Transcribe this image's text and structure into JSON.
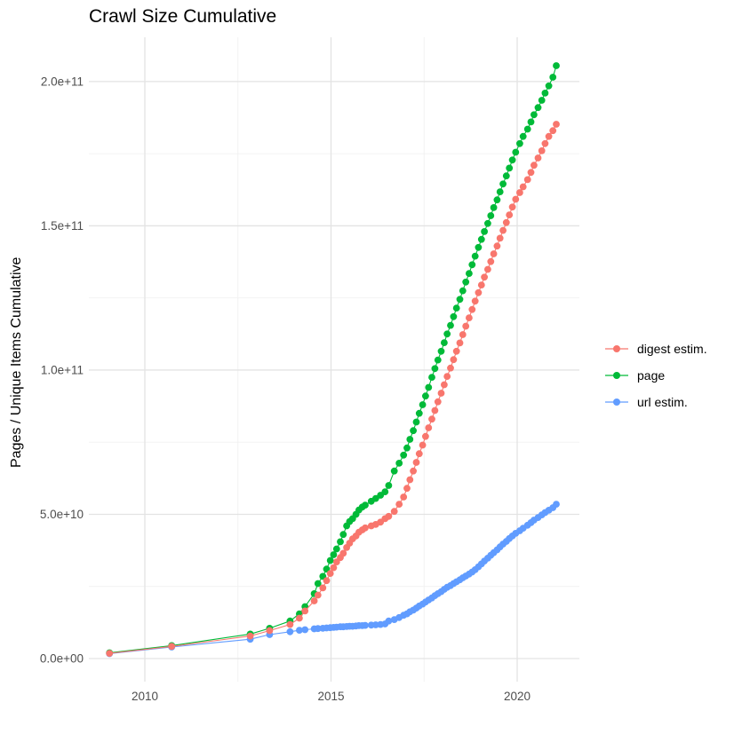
{
  "title": "Crawl Size Cumulative",
  "y_axis": {
    "label": "Pages / Unique Items Cumulative",
    "tick_labels": [
      "0.0e+00",
      "5.0e+10",
      "1.0e+11",
      "1.5e+11",
      "2.0e+11"
    ],
    "tick_values_billions": [
      0,
      50,
      100,
      150,
      200
    ],
    "minor_values_billions": [
      25,
      75,
      125,
      175
    ]
  },
  "x_axis": {
    "tick_labels": [
      "2010",
      "2015",
      "2020"
    ],
    "tick_values": [
      2010,
      2015,
      2020
    ],
    "minor_values": [
      2012.5,
      2017.5
    ]
  },
  "legend": [
    {
      "label": "digest estim.",
      "color": "#F8766D"
    },
    {
      "label": "page",
      "color": "#00BA38"
    },
    {
      "label": "url estim.",
      "color": "#619CFF"
    }
  ],
  "colors": {
    "digest": "#F8766D",
    "page": "#00BA38",
    "url": "#619CFF",
    "grid_major": "#E3E3E3",
    "grid_minor": "#F1F1F1",
    "tick_text": "#4D4D4D",
    "title_text": "#000000"
  },
  "chart_data": {
    "type": "line",
    "title": "Crawl Size Cumulative",
    "xlabel": "",
    "ylabel": "Pages / Unique Items Cumulative",
    "unit": "billions of pages / unique items (1e9)",
    "xlim": [
      2008.5,
      2021.7
    ],
    "ylim_billions": [
      -8,
      215
    ],
    "grid": "major and minor, light gray on white",
    "legend_position": "right",
    "marker": "point",
    "series": [
      {
        "name": "digest estim.",
        "color": "#F8766D",
        "points": [
          [
            2009.05,
            1.8
          ],
          [
            2010.72,
            4.2
          ],
          [
            2012.83,
            7.8
          ],
          [
            2013.35,
            9.7
          ],
          [
            2013.9,
            11.8
          ],
          [
            2014.15,
            14
          ],
          [
            2014.3,
            16.5
          ],
          [
            2014.55,
            20
          ],
          [
            2014.65,
            22
          ],
          [
            2014.78,
            24.5
          ],
          [
            2014.88,
            27
          ],
          [
            2014.98,
            29.5
          ],
          [
            2015.07,
            31.5
          ],
          [
            2015.15,
            33.5
          ],
          [
            2015.25,
            35
          ],
          [
            2015.33,
            36.5
          ],
          [
            2015.42,
            38.5
          ],
          [
            2015.5,
            40
          ],
          [
            2015.58,
            41.5
          ],
          [
            2015.67,
            42.5
          ],
          [
            2015.75,
            43.8
          ],
          [
            2015.84,
            44.6
          ],
          [
            2015.92,
            45.3
          ],
          [
            2016.08,
            46
          ],
          [
            2016.2,
            46.5
          ],
          [
            2016.33,
            47.3
          ],
          [
            2016.45,
            48.5
          ],
          [
            2016.55,
            49.3
          ],
          [
            2016.7,
            51
          ],
          [
            2016.83,
            53.5
          ],
          [
            2016.95,
            56
          ],
          [
            2017.04,
            59
          ],
          [
            2017.12,
            62
          ],
          [
            2017.21,
            65
          ],
          [
            2017.29,
            68
          ],
          [
            2017.37,
            71
          ],
          [
            2017.46,
            74
          ],
          [
            2017.54,
            77
          ],
          [
            2017.62,
            80
          ],
          [
            2017.71,
            83
          ],
          [
            2017.79,
            86
          ],
          [
            2017.87,
            89
          ],
          [
            2017.96,
            92
          ],
          [
            2018.04,
            94.9
          ],
          [
            2018.12,
            97.8
          ],
          [
            2018.21,
            100.7
          ],
          [
            2018.29,
            103.6
          ],
          [
            2018.37,
            106.5
          ],
          [
            2018.46,
            109.4
          ],
          [
            2018.54,
            112.3
          ],
          [
            2018.62,
            115.2
          ],
          [
            2018.71,
            118.1
          ],
          [
            2018.79,
            121
          ],
          [
            2018.87,
            123.9
          ],
          [
            2018.96,
            126.8
          ],
          [
            2019.04,
            129.5
          ],
          [
            2019.12,
            132.2
          ],
          [
            2019.21,
            134.9
          ],
          [
            2019.29,
            137.6
          ],
          [
            2019.37,
            140.3
          ],
          [
            2019.46,
            143
          ],
          [
            2019.54,
            145.7
          ],
          [
            2019.62,
            148.4
          ],
          [
            2019.71,
            151.1
          ],
          [
            2019.79,
            153.8
          ],
          [
            2019.87,
            156.5
          ],
          [
            2019.96,
            159.2
          ],
          [
            2020.07,
            161.5
          ],
          [
            2020.16,
            163.5
          ],
          [
            2020.28,
            166
          ],
          [
            2020.37,
            168.5
          ],
          [
            2020.45,
            171
          ],
          [
            2020.56,
            173.5
          ],
          [
            2020.66,
            176
          ],
          [
            2020.75,
            178.5
          ],
          [
            2020.85,
            181
          ],
          [
            2020.96,
            183
          ],
          [
            2021.05,
            185.2
          ]
        ]
      },
      {
        "name": "page",
        "color": "#00BA38",
        "points": [
          [
            2009.05,
            2
          ],
          [
            2010.72,
            4.5
          ],
          [
            2012.83,
            8.5
          ],
          [
            2013.35,
            10.5
          ],
          [
            2013.9,
            13
          ],
          [
            2014.15,
            15.5
          ],
          [
            2014.3,
            18
          ],
          [
            2014.55,
            22.5
          ],
          [
            2014.65,
            26
          ],
          [
            2014.78,
            28.5
          ],
          [
            2014.88,
            31
          ],
          [
            2014.98,
            34
          ],
          [
            2015.07,
            36
          ],
          [
            2015.15,
            38
          ],
          [
            2015.25,
            40.5
          ],
          [
            2015.33,
            43
          ],
          [
            2015.42,
            46
          ],
          [
            2015.5,
            47.5
          ],
          [
            2015.58,
            48.5
          ],
          [
            2015.67,
            50
          ],
          [
            2015.75,
            51.5
          ],
          [
            2015.84,
            52.5
          ],
          [
            2015.92,
            53.2
          ],
          [
            2016.08,
            54.5
          ],
          [
            2016.2,
            55.5
          ],
          [
            2016.33,
            56.6
          ],
          [
            2016.45,
            57.8
          ],
          [
            2016.55,
            60
          ],
          [
            2016.7,
            65
          ],
          [
            2016.83,
            67.7
          ],
          [
            2016.95,
            70.5
          ],
          [
            2017.04,
            73
          ],
          [
            2017.12,
            76
          ],
          [
            2017.21,
            79
          ],
          [
            2017.29,
            82
          ],
          [
            2017.37,
            85
          ],
          [
            2017.46,
            88
          ],
          [
            2017.54,
            91
          ],
          [
            2017.62,
            94
          ],
          [
            2017.71,
            97.5
          ],
          [
            2017.79,
            100.5
          ],
          [
            2017.87,
            103.5
          ],
          [
            2017.96,
            106.5
          ],
          [
            2018.04,
            109.5
          ],
          [
            2018.12,
            112.5
          ],
          [
            2018.21,
            115.5
          ],
          [
            2018.29,
            118.5
          ],
          [
            2018.37,
            121.5
          ],
          [
            2018.46,
            124.5
          ],
          [
            2018.54,
            127.5
          ],
          [
            2018.62,
            130.5
          ],
          [
            2018.71,
            133.5
          ],
          [
            2018.79,
            136.5
          ],
          [
            2018.87,
            139.5
          ],
          [
            2018.96,
            142.5
          ],
          [
            2019.04,
            145.3
          ],
          [
            2019.12,
            148
          ],
          [
            2019.21,
            150.8
          ],
          [
            2019.29,
            153.5
          ],
          [
            2019.37,
            156.3
          ],
          [
            2019.46,
            159
          ],
          [
            2019.54,
            161.8
          ],
          [
            2019.62,
            164.5
          ],
          [
            2019.71,
            167.3
          ],
          [
            2019.79,
            170
          ],
          [
            2019.87,
            172.8
          ],
          [
            2019.96,
            175.5
          ],
          [
            2020.07,
            178.5
          ],
          [
            2020.16,
            181
          ],
          [
            2020.28,
            183.5
          ],
          [
            2020.37,
            186
          ],
          [
            2020.45,
            188.5
          ],
          [
            2020.56,
            191
          ],
          [
            2020.66,
            193.5
          ],
          [
            2020.75,
            196
          ],
          [
            2020.85,
            198.5
          ],
          [
            2020.96,
            201.5
          ],
          [
            2021.05,
            205.5
          ]
        ]
      },
      {
        "name": "url estim.",
        "color": "#619CFF",
        "points": [
          [
            2009.05,
            1.7
          ],
          [
            2010.72,
            4
          ],
          [
            2012.83,
            6.7
          ],
          [
            2013.35,
            8.3
          ],
          [
            2013.9,
            9.3
          ],
          [
            2014.15,
            9.8
          ],
          [
            2014.3,
            10
          ],
          [
            2014.55,
            10.3
          ],
          [
            2014.65,
            10.4
          ],
          [
            2014.78,
            10.5
          ],
          [
            2014.88,
            10.6
          ],
          [
            2014.98,
            10.7
          ],
          [
            2015.07,
            10.8
          ],
          [
            2015.15,
            10.9
          ],
          [
            2015.25,
            11
          ],
          [
            2015.33,
            11
          ],
          [
            2015.42,
            11.1
          ],
          [
            2015.5,
            11.2
          ],
          [
            2015.58,
            11.2
          ],
          [
            2015.67,
            11.3
          ],
          [
            2015.75,
            11.4
          ],
          [
            2015.84,
            11.4
          ],
          [
            2015.92,
            11.5
          ],
          [
            2016.08,
            11.6
          ],
          [
            2016.2,
            11.7
          ],
          [
            2016.33,
            11.8
          ],
          [
            2016.45,
            12
          ],
          [
            2016.55,
            13
          ],
          [
            2016.7,
            13.5
          ],
          [
            2016.83,
            14.2
          ],
          [
            2016.95,
            15
          ],
          [
            2017.04,
            15.5
          ],
          [
            2017.12,
            16.2
          ],
          [
            2017.21,
            16.8
          ],
          [
            2017.29,
            17.5
          ],
          [
            2017.37,
            18.2
          ],
          [
            2017.46,
            18.9
          ],
          [
            2017.54,
            19.6
          ],
          [
            2017.62,
            20.3
          ],
          [
            2017.71,
            21
          ],
          [
            2017.79,
            21.8
          ],
          [
            2017.87,
            22.5
          ],
          [
            2017.96,
            23.2
          ],
          [
            2018.04,
            24
          ],
          [
            2018.12,
            24.7
          ],
          [
            2018.21,
            25.3
          ],
          [
            2018.29,
            26
          ],
          [
            2018.37,
            26.6
          ],
          [
            2018.46,
            27.3
          ],
          [
            2018.54,
            28
          ],
          [
            2018.62,
            28.6
          ],
          [
            2018.71,
            29.3
          ],
          [
            2018.79,
            30
          ],
          [
            2018.87,
            30.8
          ],
          [
            2018.96,
            31.8
          ],
          [
            2019.04,
            32.8
          ],
          [
            2019.12,
            33.8
          ],
          [
            2019.21,
            34.8
          ],
          [
            2019.29,
            35.8
          ],
          [
            2019.37,
            36.7
          ],
          [
            2019.46,
            37.7
          ],
          [
            2019.54,
            38.7
          ],
          [
            2019.62,
            39.7
          ],
          [
            2019.71,
            40.6
          ],
          [
            2019.79,
            41.6
          ],
          [
            2019.87,
            42.5
          ],
          [
            2019.96,
            43.4
          ],
          [
            2020.07,
            44.3
          ],
          [
            2020.16,
            45.2
          ],
          [
            2020.28,
            46.2
          ],
          [
            2020.37,
            47.1
          ],
          [
            2020.45,
            48
          ],
          [
            2020.56,
            48.9
          ],
          [
            2020.66,
            49.8
          ],
          [
            2020.75,
            50.6
          ],
          [
            2020.85,
            51.4
          ],
          [
            2020.96,
            52.3
          ],
          [
            2021.05,
            53.5
          ]
        ]
      }
    ]
  }
}
